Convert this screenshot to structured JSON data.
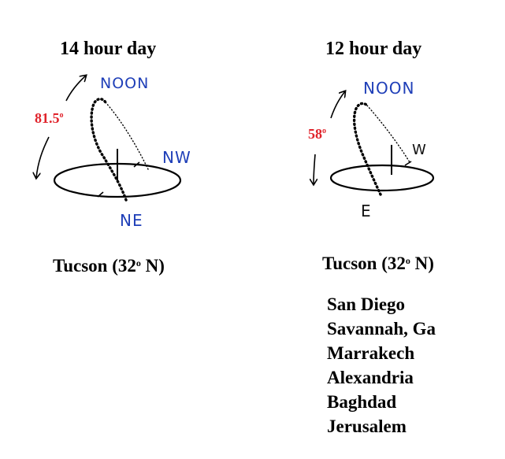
{
  "left": {
    "title": "14 hour day",
    "angle_value": "81.5",
    "angle_unit": "o",
    "label_top": "NOON",
    "label_rise": "NE",
    "label_set": "NW",
    "location_prefix": "Tucson (32",
    "location_degree": "o",
    "location_suffix": " N)"
  },
  "right": {
    "title": "12 hour day",
    "angle_value": "58",
    "angle_unit": "o",
    "label_top": "NOON",
    "label_rise": "E",
    "label_set": "W",
    "location_prefix": "Tucson (32",
    "location_degree": "o",
    "location_suffix": " N)",
    "cities": [
      "San Diego",
      "Savannah, Ga",
      "Marrakech",
      "Alexandria",
      "Baghdad",
      "Jerusalem"
    ]
  },
  "colors": {
    "handwriting_blue": "#1f3fb8",
    "angle_red": "#e0232b",
    "ink": "#000000"
  }
}
